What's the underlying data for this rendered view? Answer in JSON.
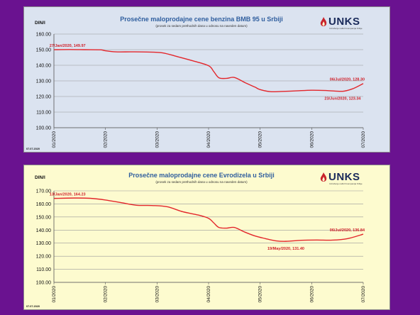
{
  "chart_data": [
    {
      "type": "line",
      "title": "Prosečne maloprodajne cene benzina BMB 95 u Srbiji",
      "subtitle": "(prosek za sedam prethodnih dana u odnosu na naveden datum)",
      "ylabel": "DIN/l",
      "ylim": [
        100,
        160
      ],
      "yticks": [
        "100.00",
        "110.00",
        "120.00",
        "130.00",
        "140.00",
        "150.00",
        "160.00"
      ],
      "xlim": [
        0,
        6
      ],
      "categories": [
        "01/2020",
        "02/2020",
        "03/2020",
        "04/2020",
        "05/2020",
        "06/2020",
        "07/2020"
      ],
      "date_stamp": "07.07.2020",
      "series": [
        {
          "color": "#e3262b",
          "x": [
            0,
            0.3,
            0.6,
            0.9,
            1.0,
            1.2,
            1.5,
            1.8,
            2.1,
            2.4,
            2.7,
            3.0,
            3.1,
            3.2,
            3.35,
            3.5,
            3.7,
            3.9,
            4.0,
            4.2,
            4.4,
            4.7,
            5.0,
            5.3,
            5.6,
            5.8,
            6.0
          ],
          "y": [
            149.97,
            150.1,
            150.0,
            149.9,
            149.3,
            148.6,
            148.6,
            148.5,
            148.0,
            145.5,
            142.8,
            139.7,
            136.0,
            132.0,
            131.6,
            132.2,
            129.0,
            126.0,
            124.4,
            123.1,
            123.2,
            123.6,
            124.0,
            123.8,
            123.34,
            125.0,
            128.3
          ]
        }
      ],
      "annotations": [
        {
          "text": "27/Jan/2020, 149.97",
          "x": 0.3,
          "y": 149.97
        },
        {
          "text": "23/Jun/2020, 123.34",
          "x": 5.6,
          "y": 123.34
        },
        {
          "text": "06/Jul/2020, 128.30",
          "x": 6.0,
          "y": 128.3
        }
      ],
      "legend": "none",
      "grid": "horizontal"
    },
    {
      "type": "line",
      "title": "Prosečne maloprodajne cene Evrodizela u Srbiji",
      "subtitle": "(prosek za sedam prethodnih dana u odnosu na naveden datum)",
      "ylabel": "DIN/l",
      "ylim": [
        100,
        170
      ],
      "yticks": [
        "100.00",
        "110.00",
        "120.00",
        "130.00",
        "140.00",
        "150.00",
        "160.00",
        "170.00"
      ],
      "xlim": [
        0,
        6
      ],
      "categories": [
        "01/2020",
        "02/2020",
        "03/2020",
        "04/2020",
        "05/2020",
        "06/2020",
        "07/2020"
      ],
      "date_stamp": "07.07.2020",
      "series": [
        {
          "color": "#e3262b",
          "x": [
            0,
            0.4,
            0.7,
            1.0,
            1.3,
            1.6,
            1.9,
            2.2,
            2.5,
            2.8,
            3.0,
            3.1,
            3.2,
            3.35,
            3.5,
            3.7,
            3.9,
            4.1,
            4.3,
            4.5,
            4.8,
            5.1,
            5.4,
            5.7,
            6.0
          ],
          "y": [
            164.23,
            164.5,
            164.3,
            163.0,
            161.0,
            159.0,
            158.8,
            157.8,
            154.0,
            151.5,
            149.0,
            145.5,
            142.0,
            141.5,
            142.0,
            138.5,
            135.5,
            133.5,
            131.8,
            131.4,
            132.2,
            132.4,
            132.3,
            133.5,
            136.84
          ]
        }
      ],
      "annotations": [
        {
          "text": "13/Jan/2020, 164.23",
          "x": 0.3,
          "y": 164.23
        },
        {
          "text": "19/May/2020, 131.40",
          "x": 4.5,
          "y": 131.4
        },
        {
          "text": "06/Jul/2020, 136.84",
          "x": 6.0,
          "y": 136.84
        }
      ],
      "legend": "none",
      "grid": "horizontal"
    }
  ],
  "logo": {
    "text": "UNKS",
    "tagline": "Udruženje naftnih kompanija Srbije",
    "colors": {
      "flame": "#c8232c",
      "text": "#1a2a5a"
    }
  },
  "colors": {
    "title": "#2f5e9e",
    "line": "#e3262b",
    "background": "#6a1290"
  }
}
